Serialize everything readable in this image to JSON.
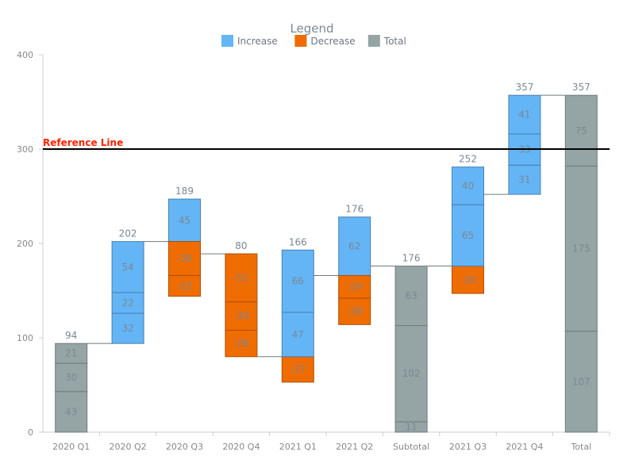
{
  "chart_data": {
    "type": "waterfall",
    "legend": {
      "title": "Legend",
      "placement": "top-center",
      "items": [
        {
          "label": "Increase",
          "color": "#64b5f6"
        },
        {
          "label": "Decrease",
          "color": "#ef6c00"
        },
        {
          "label": "Total",
          "color": "#95a5a6"
        }
      ]
    },
    "ylim": [
      0,
      400
    ],
    "yticks": [
      0,
      100,
      200,
      300,
      400
    ],
    "reference_line": {
      "label": "Reference Line",
      "value": 300,
      "color": "#ff2200"
    },
    "categories": [
      {
        "label": "2020 Q1",
        "kind": "total",
        "segments": [
          43,
          30,
          21
        ],
        "end": 94
      },
      {
        "label": "2020 Q2",
        "kind": "delta",
        "segments": [
          32,
          22,
          54
        ],
        "end": 202
      },
      {
        "label": "2020 Q3",
        "kind": "delta",
        "segments": [
          45,
          -36,
          -22
        ],
        "end": 189
      },
      {
        "label": "2020 Q4",
        "kind": "delta",
        "segments": [
          -51,
          -30,
          -28
        ],
        "end": 80
      },
      {
        "label": "2021 Q1",
        "kind": "delta",
        "segments": [
          -27,
          47,
          66
        ],
        "end": 166
      },
      {
        "label": "2021 Q2",
        "kind": "delta",
        "segments": [
          62,
          -24,
          -28
        ],
        "end": 176
      },
      {
        "label": "Subtotal",
        "kind": "total",
        "segments": [
          11,
          102,
          63
        ],
        "end": 176
      },
      {
        "label": "2021 Q3",
        "kind": "delta",
        "segments": [
          -29,
          65,
          40
        ],
        "end": 252
      },
      {
        "label": "2021 Q4",
        "kind": "delta",
        "segments": [
          31,
          33,
          41
        ],
        "end": 357
      },
      {
        "label": "Total",
        "kind": "total",
        "segments": [
          107,
          175,
          75
        ],
        "end": 357
      }
    ]
  }
}
